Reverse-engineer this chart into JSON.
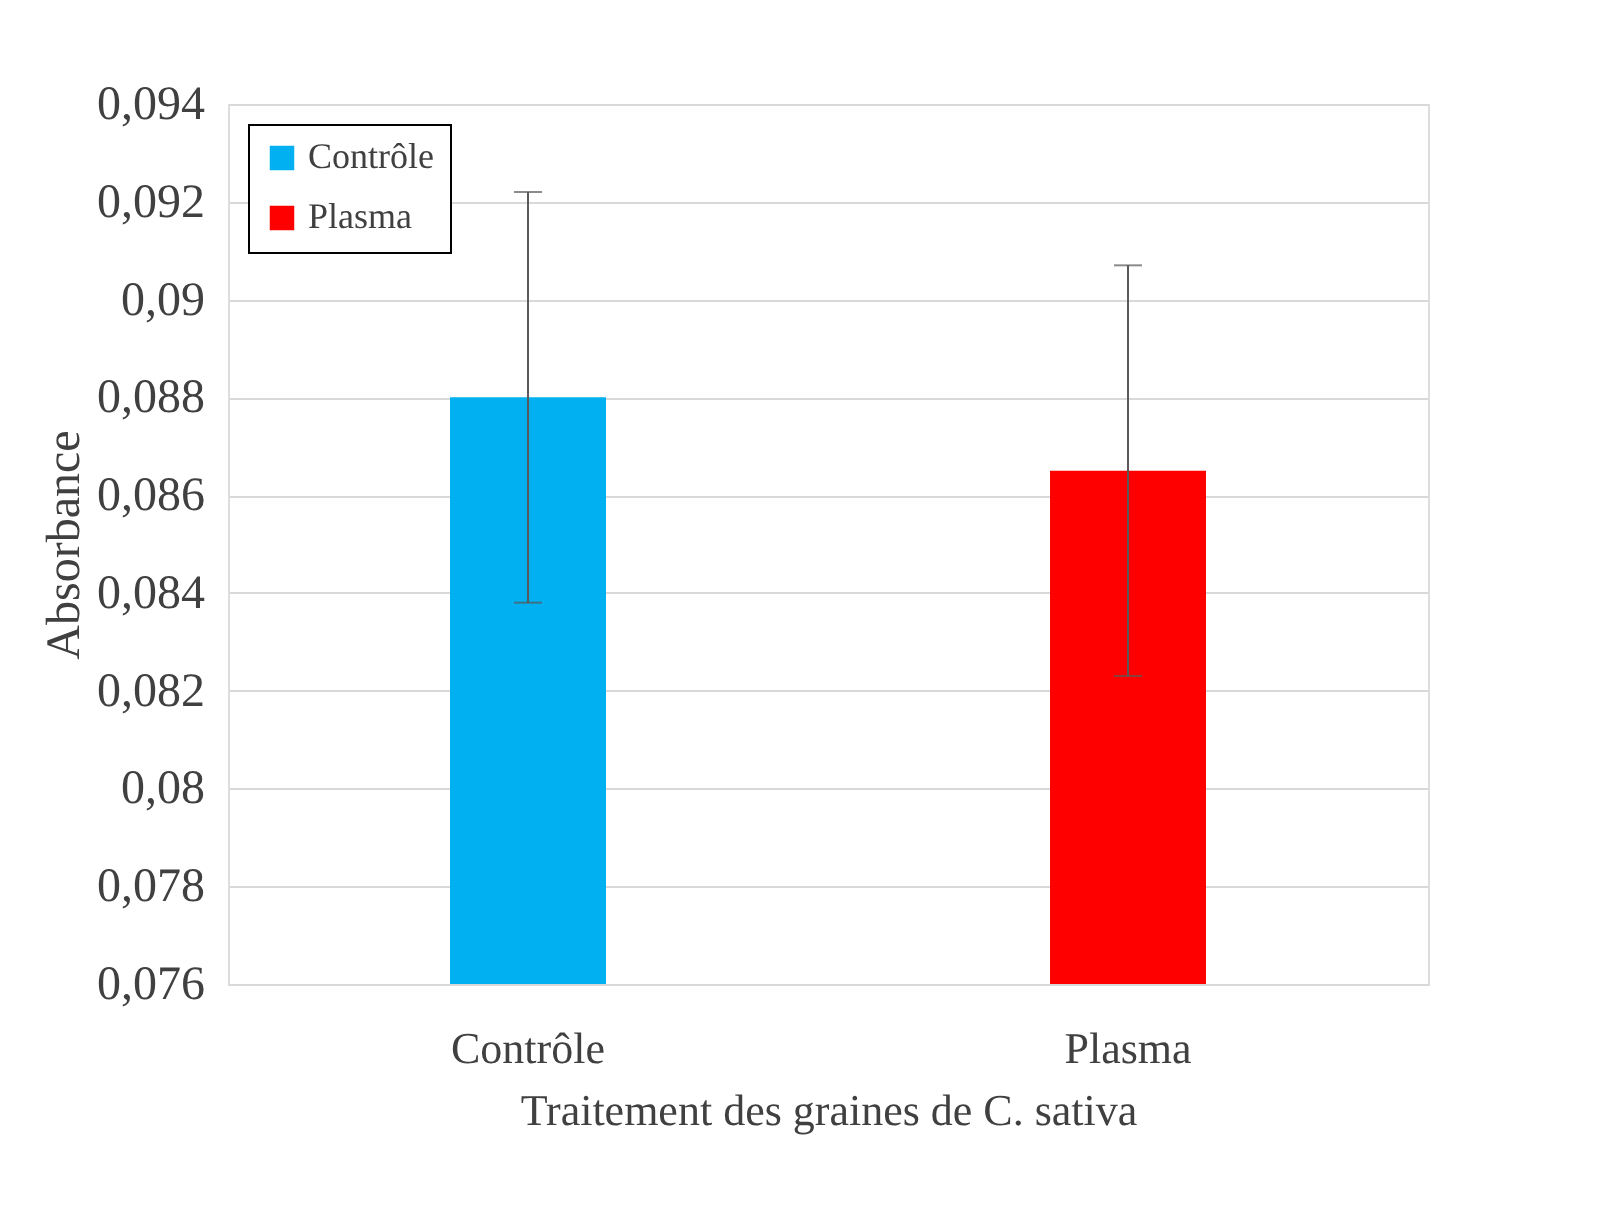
{
  "chart_data": {
    "type": "bar",
    "xlabel": "Traitement des graines de C. sativa",
    "ylabel": "Absorbance",
    "categories": [
      "Contrôle",
      "Plasma"
    ],
    "series": [
      {
        "name": "Contrôle",
        "color": "#00b0f0",
        "values": [
          0.088,
          null
        ],
        "errors": [
          0.0042,
          null
        ]
      },
      {
        "name": "Plasma",
        "color": "#ff0000",
        "values": [
          null,
          0.0865
        ],
        "errors": [
          null,
          0.0042
        ]
      }
    ],
    "ylim": [
      0.076,
      0.094
    ],
    "yticks": [
      {
        "value": 0.076,
        "label": "0,076"
      },
      {
        "value": 0.078,
        "label": "0,078"
      },
      {
        "value": 0.08,
        "label": "0,08"
      },
      {
        "value": 0.082,
        "label": "0,082"
      },
      {
        "value": 0.084,
        "label": "0,084"
      },
      {
        "value": 0.086,
        "label": "0,086"
      },
      {
        "value": 0.088,
        "label": "0,088"
      },
      {
        "value": 0.09,
        "label": "0,09"
      },
      {
        "value": 0.092,
        "label": "0,092"
      },
      {
        "value": 0.094,
        "label": "0,094"
      }
    ],
    "grid": "y",
    "legend": "top left"
  }
}
